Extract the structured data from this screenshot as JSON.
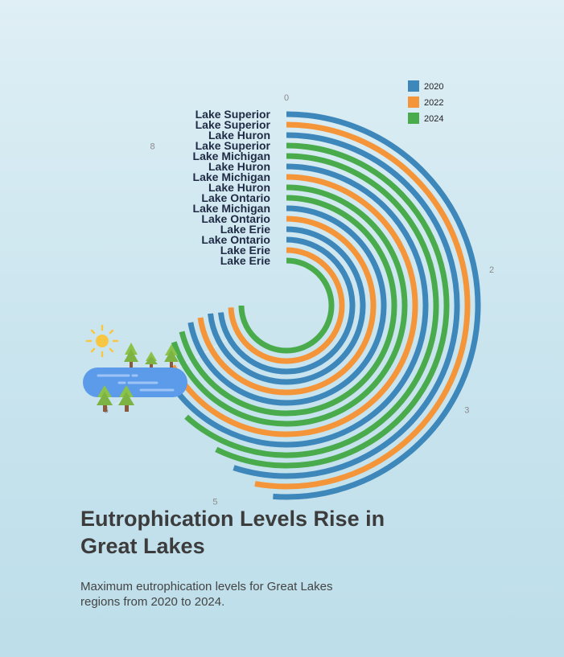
{
  "chart_data": {
    "type": "radial-bar",
    "title": "Eutrophication Levels Rise in Great Lakes",
    "subtitle": "Maximum eutrophication levels for Great Lakes regions from 2020 to 2024.",
    "axis_max": 9,
    "axis_ticks": [
      {
        "value": 0,
        "label": "0"
      },
      {
        "value": 2,
        "label": "2"
      },
      {
        "value": 3,
        "label": "3"
      },
      {
        "value": 5,
        "label": "5"
      },
      {
        "value": 6,
        "label": "6"
      },
      {
        "value": 8,
        "label": "8"
      }
    ],
    "series_colors": {
      "2020": "#3d87bb",
      "2022": "#f5953a",
      "2024": "#4aab4c"
    },
    "legend": {
      "position": "top-right",
      "entries": [
        "2020",
        "2022",
        "2024"
      ]
    },
    "bars": [
      {
        "label": "Lake Superior",
        "year": "2020",
        "value": 4.6
      },
      {
        "label": "Lake Superior",
        "year": "2022",
        "value": 4.75
      },
      {
        "label": "Lake Huron",
        "year": "2020",
        "value": 4.95
      },
      {
        "label": "Lake Superior",
        "year": "2024",
        "value": 5.15
      },
      {
        "label": "Lake Michigan",
        "year": "2024",
        "value": 5.55
      },
      {
        "label": "Lake Huron",
        "year": "2020",
        "value": 5.85
      },
      {
        "label": "Lake Michigan",
        "year": "2022",
        "value": 6.05
      },
      {
        "label": "Lake Huron",
        "year": "2024",
        "value": 6.3
      },
      {
        "label": "Lake Ontario",
        "year": "2024",
        "value": 6.4
      },
      {
        "label": "Lake Michigan",
        "year": "2020",
        "value": 6.5
      },
      {
        "label": "Lake Ontario",
        "year": "2022",
        "value": 6.55
      },
      {
        "label": "Lake Erie",
        "year": "2020",
        "value": 6.6
      },
      {
        "label": "Lake Ontario",
        "year": "2020",
        "value": 6.6
      },
      {
        "label": "Lake Erie",
        "year": "2022",
        "value": 6.7
      },
      {
        "label": "Lake Erie",
        "year": "2024",
        "value": 6.75
      }
    ]
  },
  "illustration": {
    "icons": [
      "sun-icon",
      "pine-tree-icon",
      "lake-icon"
    ]
  }
}
